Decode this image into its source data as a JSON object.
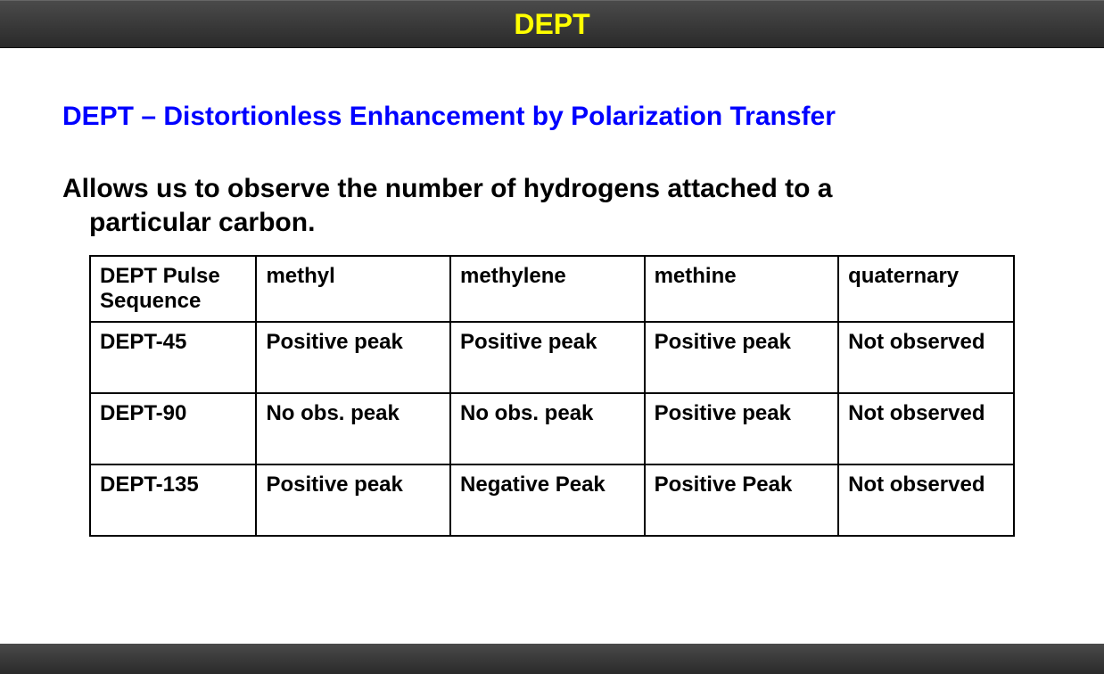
{
  "header": {
    "title": "DEPT"
  },
  "subtitle": "DEPT – Distortionless Enhancement by Polarization Transfer",
  "description_line1": "Allows us to observe the number of hydrogens attached to a",
  "description_line2": "particular carbon.",
  "table": {
    "columns": [
      "DEPT Pulse Sequence",
      " methyl",
      "methylene",
      "methine",
      "quaternary"
    ],
    "rows": [
      [
        "DEPT-45",
        "Positive peak",
        "Positive peak",
        "Positive peak",
        "Not observed"
      ],
      [
        "DEPT-90",
        "No obs. peak",
        "No obs. peak",
        "Positive peak",
        "Not observed"
      ],
      [
        "DEPT-135",
        "Positive peak",
        "Negative Peak",
        "Positive Peak",
        "Not observed"
      ]
    ],
    "border_color": "#000000",
    "text_color": "#000000",
    "font_weight": "bold"
  },
  "styling": {
    "header_bg_gradient": [
      "#4a4a4a",
      "#2a2a2a"
    ],
    "header_text_color": "#ffff00",
    "subtitle_color": "#0000ff",
    "body_text_color": "#000000",
    "background_color": "#ffffff"
  }
}
